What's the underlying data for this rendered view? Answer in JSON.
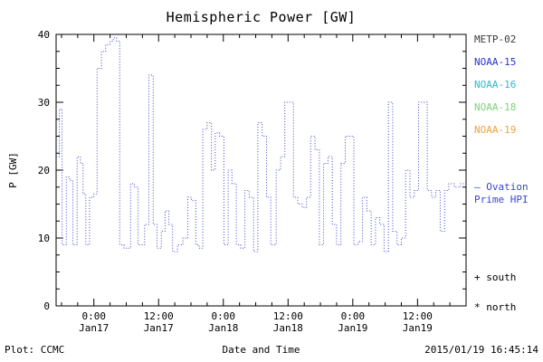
{
  "title": "Hemispheric Power [GW]",
  "y_axis_label": "P [GW]",
  "x_axis_label": "Date and Time",
  "footer": {
    "plot_credit": "Plot: CCMC",
    "timestamp": "2015/01/19 16:45:14"
  },
  "legend": {
    "satellites": [
      {
        "label": "METP-02",
        "color": "#3a3a3a"
      },
      {
        "label": "NOAA-15",
        "color": "#2633cc"
      },
      {
        "label": "NOAA-16",
        "color": "#2fb8cc"
      },
      {
        "label": "NOAA-18",
        "color": "#7ed07e"
      },
      {
        "label": "NOAA-19",
        "color": "#f2a23c"
      }
    ],
    "ovation": {
      "line1": "— Ovation",
      "line2": "Prime HPI",
      "color": "#3946d2"
    },
    "south_marker": "+ south",
    "north_marker": "* north"
  },
  "chart_data": {
    "type": "line",
    "style": "dotted-step",
    "line_color": "#3c44cc",
    "title": "Hemispheric Power [GW]",
    "xlabel": "Date and Time",
    "ylabel": "P [GW]",
    "ylim": [
      0,
      40
    ],
    "yticks": [
      0,
      10,
      20,
      30,
      40
    ],
    "y_minor_step": 2.5,
    "xlim_hours": [
      -7,
      69
    ],
    "x_minor_step_hours": 3,
    "xticks": [
      {
        "t": 0,
        "time": "0:00",
        "date": "Jan17"
      },
      {
        "t": 12,
        "time": "12:00",
        "date": "Jan17"
      },
      {
        "t": 24,
        "time": "0:00",
        "date": "Jan18"
      },
      {
        "t": 36,
        "time": "12:00",
        "date": "Jan18"
      },
      {
        "t": 48,
        "time": "0:00",
        "date": "Jan19"
      },
      {
        "t": 60,
        "time": "12:00",
        "date": "Jan19"
      }
    ],
    "series": [
      {
        "name": "Ovation Prime HPI",
        "points": [
          [
            -7.0,
            22
          ],
          [
            -6.4,
            29
          ],
          [
            -5.9,
            9
          ],
          [
            -5.1,
            19
          ],
          [
            -4.5,
            18.5
          ],
          [
            -3.9,
            9
          ],
          [
            -3.1,
            22
          ],
          [
            -2.5,
            21
          ],
          [
            -2.0,
            16.5
          ],
          [
            -1.5,
            9
          ],
          [
            -0.8,
            16
          ],
          [
            0.0,
            16.5
          ],
          [
            0.6,
            35
          ],
          [
            1.4,
            37.5
          ],
          [
            2.2,
            38.5
          ],
          [
            3.0,
            39
          ],
          [
            3.6,
            39.5
          ],
          [
            4.2,
            39
          ],
          [
            4.8,
            9
          ],
          [
            5.6,
            8.5
          ],
          [
            6.8,
            18
          ],
          [
            7.5,
            17.5
          ],
          [
            8.2,
            9
          ],
          [
            9.4,
            12
          ],
          [
            10.2,
            34
          ],
          [
            11.0,
            12
          ],
          [
            11.7,
            8.5
          ],
          [
            12.5,
            11
          ],
          [
            13.2,
            14
          ],
          [
            13.9,
            12
          ],
          [
            14.6,
            8
          ],
          [
            15.5,
            9
          ],
          [
            16.5,
            10
          ],
          [
            17.4,
            16
          ],
          [
            18.1,
            15.5
          ],
          [
            18.9,
            9
          ],
          [
            19.5,
            8.5
          ],
          [
            20.2,
            26
          ],
          [
            21.0,
            27
          ],
          [
            21.8,
            20
          ],
          [
            22.5,
            25.5
          ],
          [
            23.3,
            25
          ],
          [
            24.1,
            9
          ],
          [
            24.9,
            20
          ],
          [
            25.6,
            18
          ],
          [
            26.4,
            9
          ],
          [
            27.2,
            8.5
          ],
          [
            28.0,
            17
          ],
          [
            28.8,
            16
          ],
          [
            29.6,
            8
          ],
          [
            30.4,
            27
          ],
          [
            31.2,
            25
          ],
          [
            32.0,
            16
          ],
          [
            32.8,
            9
          ],
          [
            33.8,
            20
          ],
          [
            34.6,
            22
          ],
          [
            35.4,
            30
          ],
          [
            36.2,
            30
          ],
          [
            37.0,
            16
          ],
          [
            37.8,
            15
          ],
          [
            38.6,
            14.5
          ],
          [
            39.4,
            16
          ],
          [
            40.2,
            25
          ],
          [
            41.0,
            23
          ],
          [
            41.8,
            9
          ],
          [
            42.6,
            21
          ],
          [
            43.4,
            22
          ],
          [
            44.2,
            12
          ],
          [
            45.0,
            9
          ],
          [
            45.8,
            21
          ],
          [
            46.6,
            25
          ],
          [
            47.4,
            25
          ],
          [
            48.2,
            9
          ],
          [
            49.0,
            9.5
          ],
          [
            49.8,
            16
          ],
          [
            50.6,
            14
          ],
          [
            51.4,
            9
          ],
          [
            52.2,
            13
          ],
          [
            53.0,
            12
          ],
          [
            53.8,
            8
          ],
          [
            54.6,
            30
          ],
          [
            55.4,
            11
          ],
          [
            56.2,
            9
          ],
          [
            57.0,
            10
          ],
          [
            57.8,
            20
          ],
          [
            58.6,
            16
          ],
          [
            59.4,
            17
          ],
          [
            60.2,
            30
          ],
          [
            61.0,
            30
          ],
          [
            61.8,
            17
          ],
          [
            62.6,
            16
          ],
          [
            63.4,
            17
          ],
          [
            64.2,
            11
          ],
          [
            65.0,
            17
          ],
          [
            65.8,
            18
          ],
          [
            66.8,
            17.5
          ],
          [
            68.0,
            18
          ]
        ]
      }
    ]
  }
}
